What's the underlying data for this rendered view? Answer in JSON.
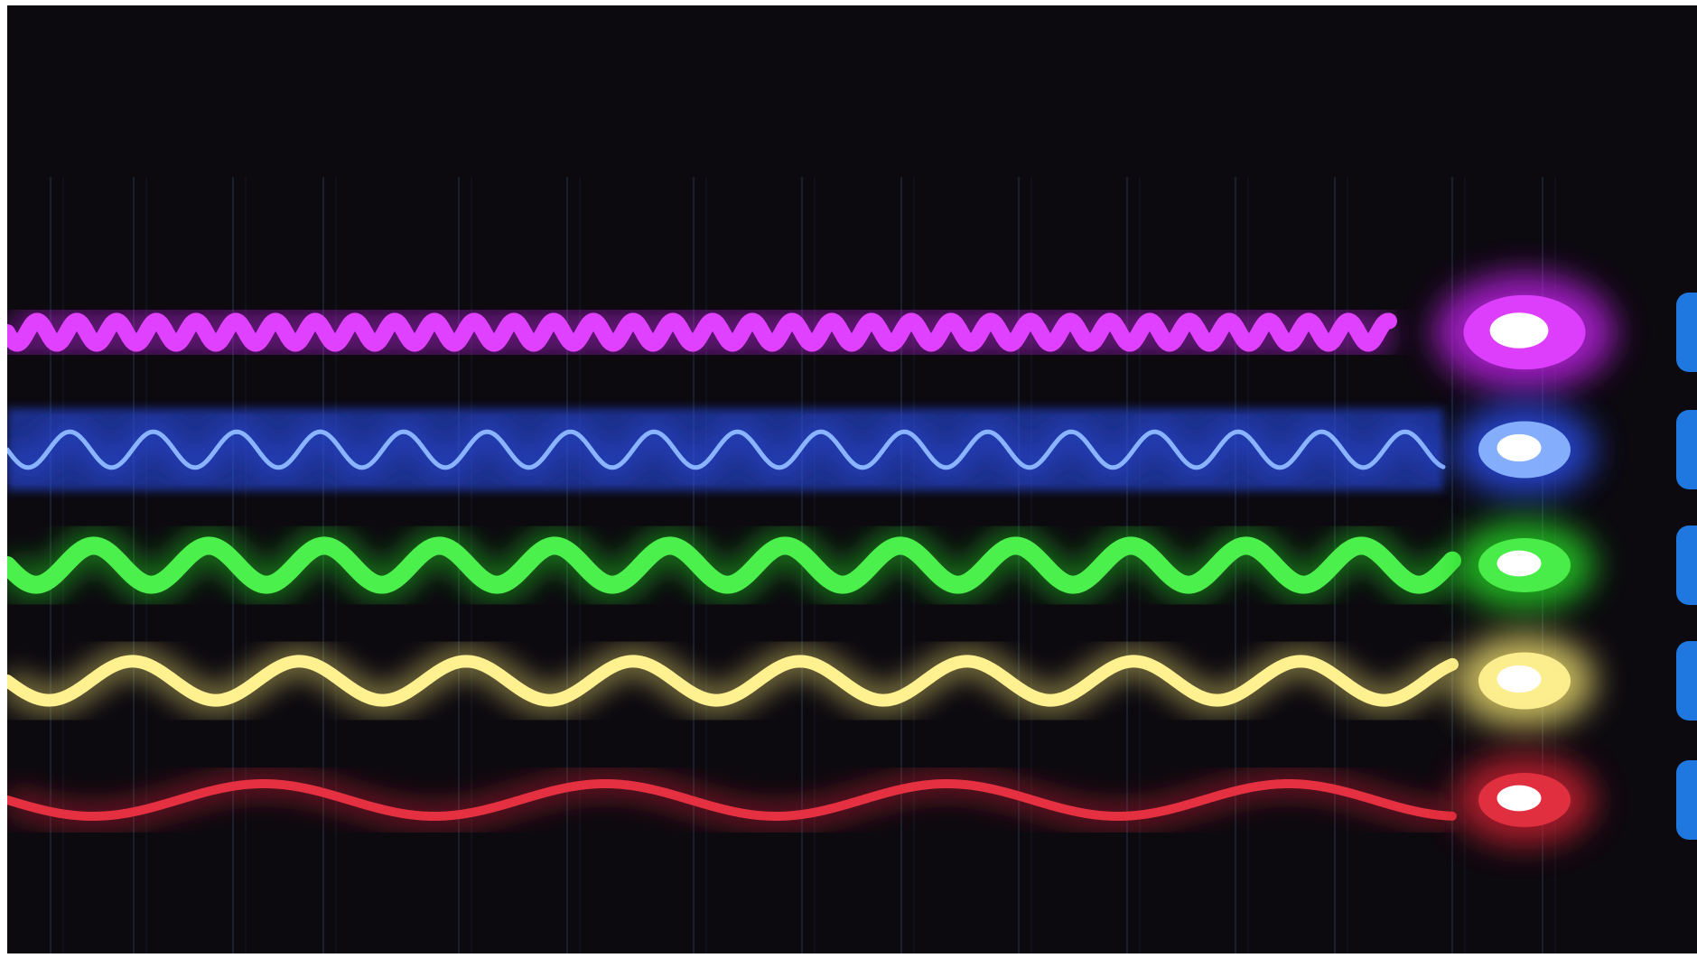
{
  "background_color": "#0c090f",
  "grid_color": "#2c4155",
  "waves": [
    {
      "color": "#c020e8",
      "core_color": "#e040ff",
      "relative_wavelength": 1.0,
      "amplitude_level": 0.35
    },
    {
      "color": "#2c50f0",
      "core_color": "#8ab4ff",
      "relative_wavelength": 2.1,
      "amplitude_level": 0.55
    },
    {
      "color": "#28d828",
      "core_color": "#4cf04c",
      "relative_wavelength": 2.9,
      "amplitude_level": 0.6
    },
    {
      "color": "#f0e070",
      "core_color": "#fff090",
      "relative_wavelength": 4.2,
      "amplitude_level": 0.6
    },
    {
      "color": "#d02030",
      "core_color": "#e43040",
      "relative_wavelength": 8.6,
      "amplitude_level": 0.5
    }
  ],
  "emitter_icon": "light-source-glow-icon",
  "side_button_color": "#1e78e0"
}
